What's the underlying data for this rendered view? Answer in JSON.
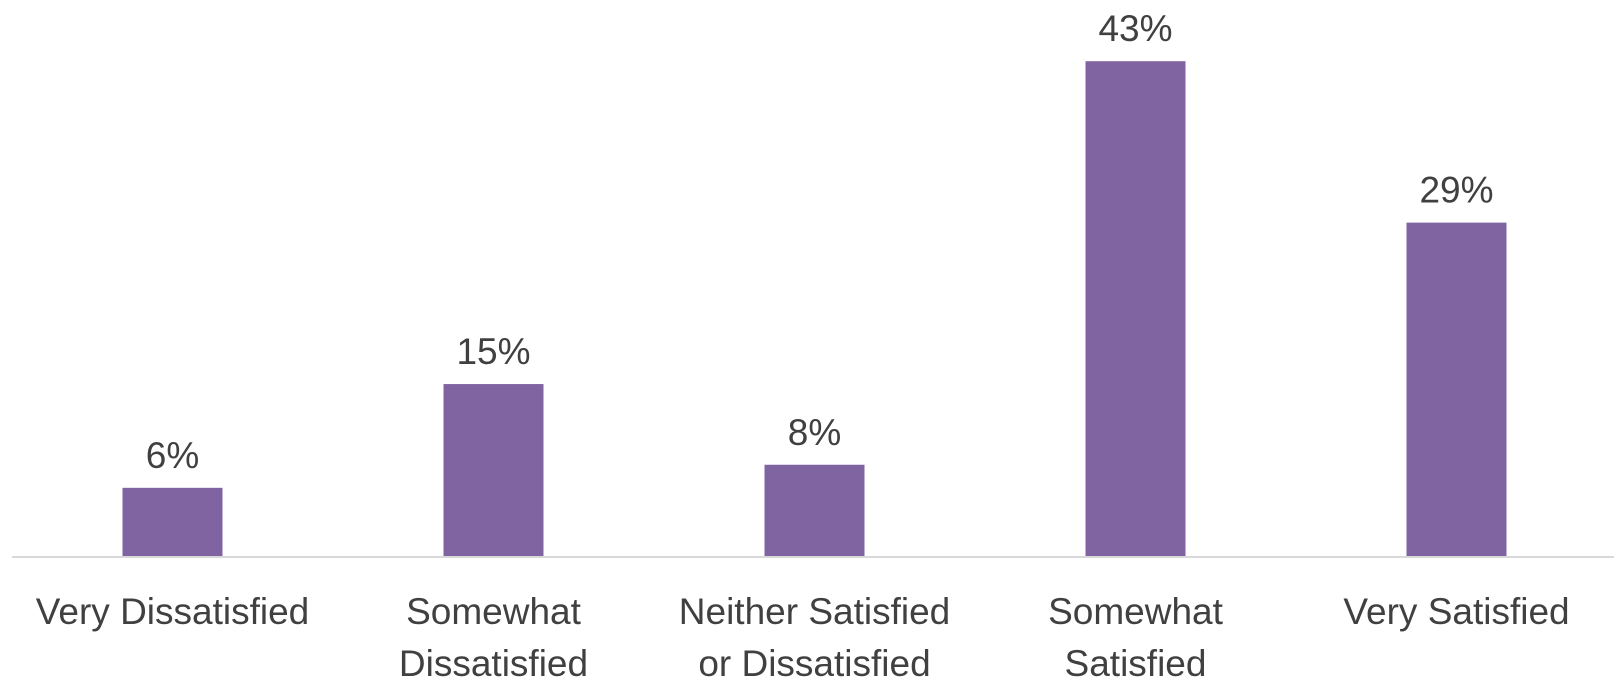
{
  "chart_data": {
    "type": "bar",
    "categories": [
      [
        "Very Dissatisfied"
      ],
      [
        "Somewhat",
        "Dissatisfied"
      ],
      [
        "Neither Satisfied",
        "or Dissatisfied"
      ],
      [
        "Somewhat",
        "Satisfied"
      ],
      [
        "Very Satisfied"
      ]
    ],
    "values": [
      6,
      15,
      8,
      43,
      29
    ],
    "data_labels": [
      "6%",
      "15%",
      "8%",
      "43%",
      "29%"
    ],
    "unit": "%",
    "ylim": [
      0,
      45
    ],
    "grid": false,
    "legend": "none",
    "colors": {
      "bar": "#8064a2",
      "axis": "#d9d9d9",
      "text": "#404040"
    }
  }
}
